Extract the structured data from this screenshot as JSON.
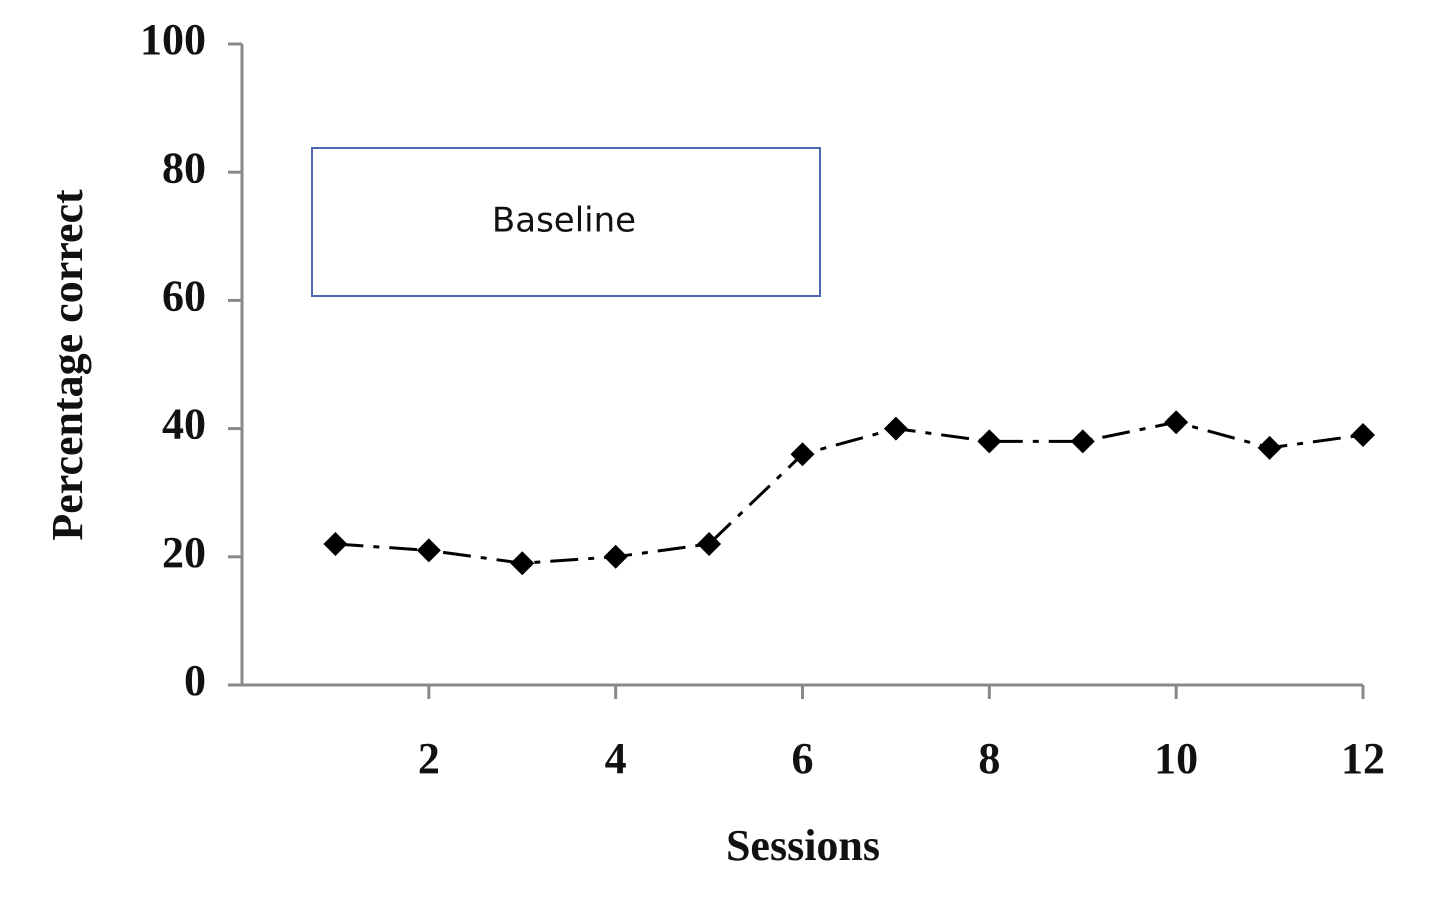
{
  "chart_data": {
    "type": "line",
    "annotation": "Baseline",
    "xlabel": "Sessions",
    "ylabel": "Percentage correct",
    "x": [
      1,
      2,
      3,
      4,
      5,
      6,
      7,
      8,
      9,
      10,
      11,
      12
    ],
    "series": [
      {
        "name": "Percentage correct",
        "color": "#000000",
        "values": [
          22,
          21,
          19,
          20,
          22,
          36,
          40,
          38,
          38,
          41,
          37,
          39
        ]
      }
    ],
    "xlim": [
      0,
      12
    ],
    "xticks": [
      2,
      4,
      6,
      8,
      10,
      12
    ],
    "ylim": [
      0,
      100
    ],
    "yticks": [
      0,
      20,
      40,
      60,
      80,
      100
    ],
    "grid": false
  }
}
